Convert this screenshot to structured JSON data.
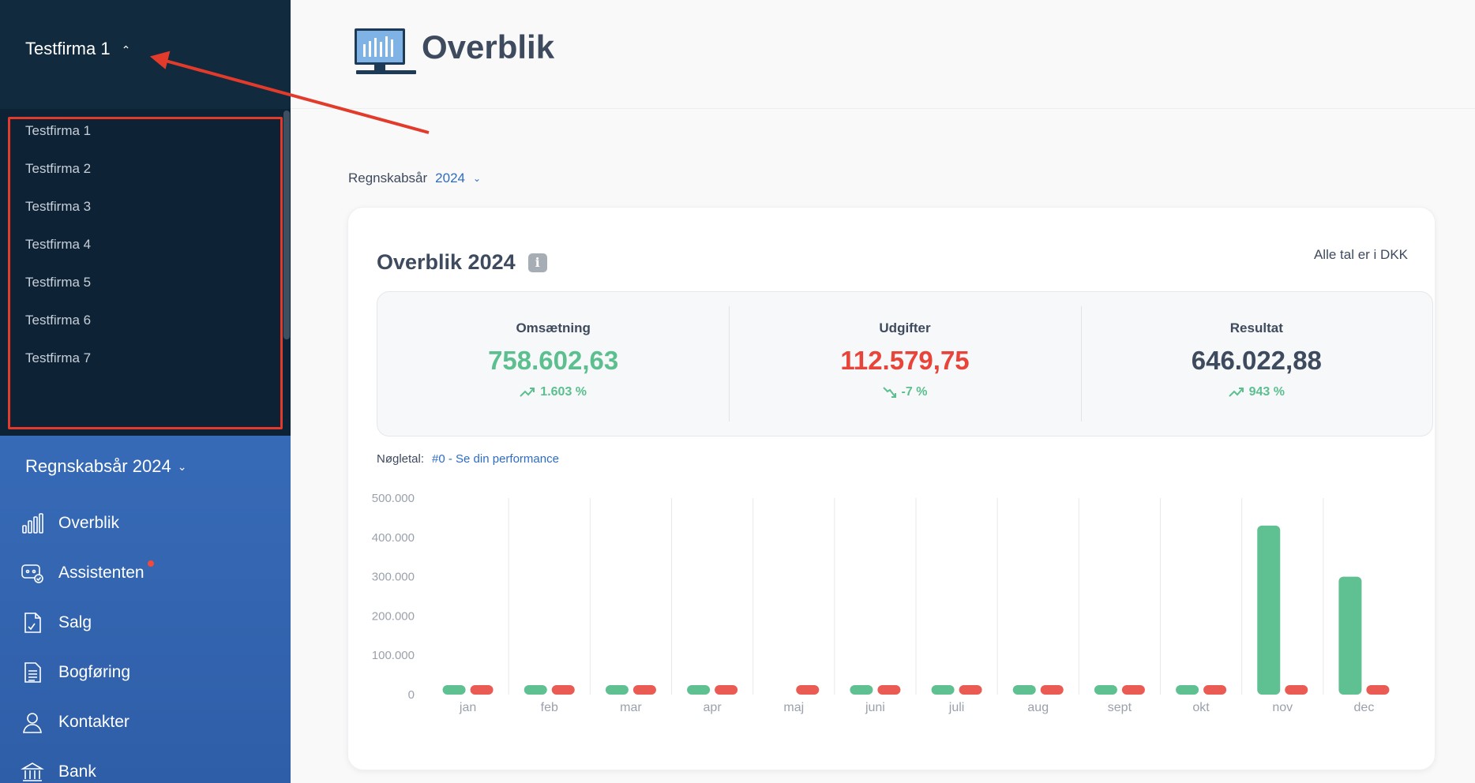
{
  "sidebar": {
    "company": "Testfirma 1",
    "company_list": [
      "Testfirma 1",
      "Testfirma 2",
      "Testfirma 3",
      "Testfirma 4",
      "Testfirma 5",
      "Testfirma 6",
      "Testfirma 7"
    ],
    "fiscal_year": "Regnskabsår 2024",
    "nav": [
      {
        "label": "Overblik",
        "icon": "bar-chart-icon"
      },
      {
        "label": "Assistenten",
        "icon": "assistant-icon",
        "notification": true
      },
      {
        "label": "Salg",
        "icon": "sales-document-icon"
      },
      {
        "label": "Bogføring",
        "icon": "bookkeeping-icon"
      },
      {
        "label": "Kontakter",
        "icon": "contact-person-icon"
      },
      {
        "label": "Bank",
        "icon": "bank-icon"
      }
    ]
  },
  "header": {
    "title": "Overblik",
    "logo_icon": "monitor-chart-icon"
  },
  "fiscal_select": {
    "label": "Regnskabsår",
    "value": "2024"
  },
  "overview": {
    "title": "Overblik 2024",
    "currency_note": "Alle tal er i DKK",
    "kpis": [
      {
        "label": "Omsætning",
        "value": "758.602,63",
        "change": "1.603 %",
        "direction": "up",
        "color": "#5bbf8f"
      },
      {
        "label": "Udgifter",
        "value": "112.579,75",
        "change": "-7 %",
        "direction": "down",
        "color": "#e8443a"
      },
      {
        "label": "Resultat",
        "value": "646.022,88",
        "change": "943 %",
        "direction": "up",
        "color": "#3e4a5d"
      }
    ],
    "metric_label": "Nøgletal:",
    "metric_link": "#0 - Se din performance"
  },
  "colors": {
    "income": "#5fc092",
    "expense": "#ea5b54",
    "accent": "#2d6cc4"
  },
  "chart_data": {
    "type": "bar",
    "categories": [
      "jan",
      "feb",
      "mar",
      "apr",
      "maj",
      "juni",
      "juli",
      "aug",
      "sept",
      "okt",
      "nov",
      "dec"
    ],
    "y_ticks": [
      "500.000",
      "400.000",
      "300.000",
      "200.000",
      "100.000",
      "0"
    ],
    "ylim": [
      0,
      500000
    ],
    "series": [
      {
        "values": [
          2000,
          2000,
          2000,
          2000,
          0,
          2000,
          2000,
          2000,
          2000,
          2000,
          430000,
          300000
        ]
      },
      {
        "values": [
          10000,
          2000,
          2000,
          2000,
          2000,
          2000,
          2000,
          2000,
          2000,
          2000,
          2000,
          12000
        ]
      }
    ]
  }
}
